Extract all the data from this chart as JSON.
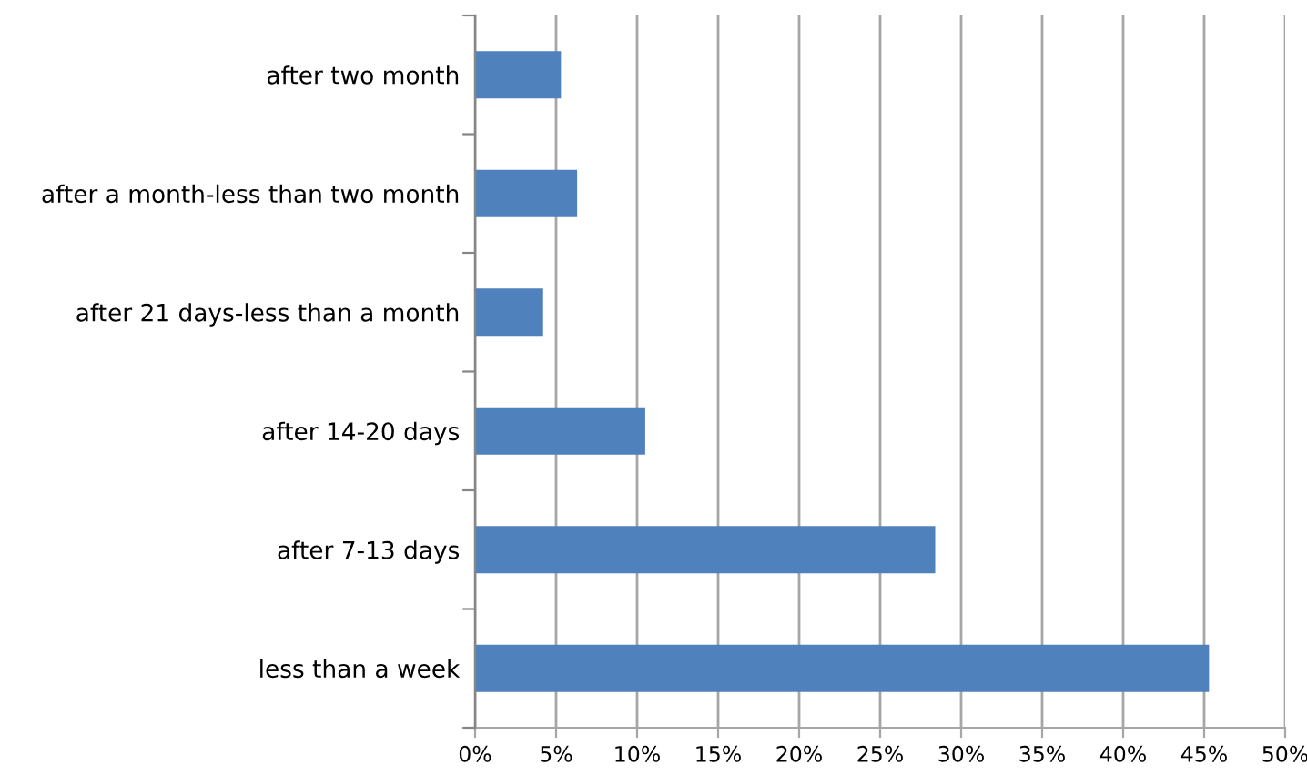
{
  "chart_data": {
    "type": "bar",
    "orientation": "horizontal",
    "categories": [
      "after two month",
      "after a month-less than two month",
      "after 21 days-less than a month",
      "after 14-20 days",
      "after 7-13 days",
      "less than a week"
    ],
    "values": [
      5.3,
      6.3,
      4.2,
      10.5,
      28.4,
      45.3
    ],
    "color": "#4f81bd",
    "xlim": [
      0,
      50
    ],
    "xticks": [
      {
        "value": 0,
        "label": "0%"
      },
      {
        "value": 5,
        "label": "5%"
      },
      {
        "value": 10,
        "label": "10%"
      },
      {
        "value": 15,
        "label": "15%"
      },
      {
        "value": 20,
        "label": "20%"
      },
      {
        "value": 25,
        "label": "25%"
      },
      {
        "value": 30,
        "label": "30%"
      },
      {
        "value": 35,
        "label": "35%"
      },
      {
        "value": 40,
        "label": "40%"
      },
      {
        "value": 45,
        "label": "45%"
      },
      {
        "value": 50,
        "label": "50%"
      }
    ],
    "grid": "x"
  }
}
